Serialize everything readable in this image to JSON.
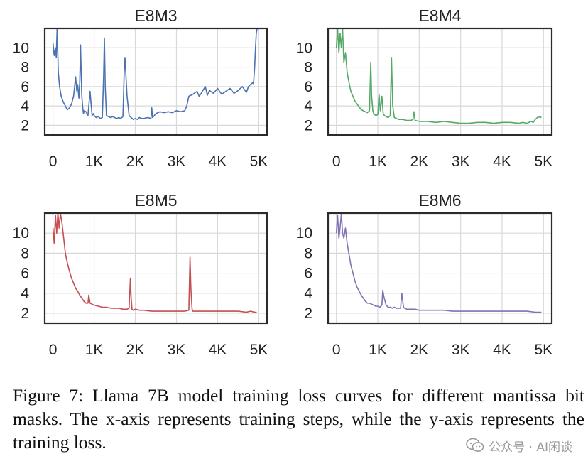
{
  "chart_data": [
    {
      "type": "line",
      "title": "E8M3",
      "color": "#4c72b0",
      "xlim": [
        -200,
        5200
      ],
      "ylim": [
        1,
        12
      ],
      "xticks": [
        0,
        1000,
        2000,
        3000,
        4000,
        5000
      ],
      "xtick_labels": [
        "0",
        "1K",
        "2K",
        "3K",
        "4K",
        "5K"
      ],
      "yticks": [
        2,
        4,
        6,
        8,
        10
      ],
      "ytick_labels": [
        "2",
        "4",
        "6",
        "8",
        "10"
      ],
      "grid": true,
      "x": [
        0,
        30,
        60,
        80,
        100,
        130,
        160,
        200,
        250,
        300,
        350,
        400,
        450,
        500,
        550,
        580,
        600,
        630,
        650,
        670,
        700,
        720,
        740,
        760,
        800,
        850,
        900,
        930,
        950,
        980,
        1000,
        1050,
        1100,
        1150,
        1200,
        1230,
        1250,
        1270,
        1300,
        1350,
        1400,
        1450,
        1500,
        1550,
        1600,
        1650,
        1700,
        1730,
        1750,
        1780,
        1800,
        1850,
        1900,
        1950,
        2000,
        2050,
        2100,
        2150,
        2200,
        2300,
        2380,
        2400,
        2420,
        2500,
        2600,
        2700,
        2800,
        2900,
        3000,
        3100,
        3200,
        3250,
        3300,
        3400,
        3500,
        3550,
        3600,
        3700,
        3750,
        3800,
        3900,
        4000,
        4100,
        4200,
        4300,
        4400,
        4500,
        4600,
        4700,
        4750,
        4800,
        4850,
        4870,
        4880,
        4900,
        4920,
        4940,
        4960
      ],
      "y": [
        10.5,
        9.2,
        10.0,
        9.0,
        12.0,
        7.5,
        6.0,
        5.0,
        4.4,
        4.0,
        3.6,
        3.8,
        4.2,
        5.0,
        7.0,
        5.5,
        6.2,
        4.8,
        6.5,
        10.3,
        5.0,
        4.0,
        3.2,
        3.5,
        3.4,
        3.0,
        5.5,
        4.0,
        3.0,
        3.2,
        3.0,
        2.8,
        2.9,
        2.7,
        2.8,
        7.0,
        11.0,
        6.0,
        3.0,
        2.9,
        2.8,
        2.9,
        2.8,
        2.7,
        2.8,
        2.7,
        2.9,
        7.5,
        9.0,
        6.5,
        5.0,
        3.0,
        2.8,
        2.6,
        2.7,
        2.6,
        2.8,
        2.7,
        2.7,
        2.8,
        2.7,
        3.8,
        2.8,
        3.2,
        3.4,
        3.3,
        3.4,
        3.3,
        3.5,
        3.4,
        3.5,
        4.0,
        5.0,
        5.2,
        5.5,
        5.0,
        5.3,
        6.0,
        5.1,
        5.6,
        5.3,
        5.8,
        5.2,
        5.5,
        5.8,
        5.3,
        5.6,
        6.0,
        5.4,
        6.0,
        6.2,
        6.4,
        6.3,
        6.8,
        8.0,
        10.0,
        11.5,
        12.0
      ]
    },
    {
      "type": "line",
      "title": "E8M4",
      "color": "#55a868",
      "xlim": [
        -200,
        5200
      ],
      "ylim": [
        1,
        12
      ],
      "xticks": [
        0,
        1000,
        2000,
        3000,
        4000,
        5000
      ],
      "xtick_labels": [
        "0",
        "1K",
        "2K",
        "3K",
        "4K",
        "5K"
      ],
      "yticks": [
        2,
        4,
        6,
        8,
        10
      ],
      "ytick_labels": [
        "2",
        "4",
        "6",
        "8",
        "10"
      ],
      "grid": true,
      "x": [
        0,
        30,
        60,
        90,
        120,
        150,
        180,
        220,
        260,
        300,
        350,
        400,
        450,
        500,
        550,
        600,
        650,
        700,
        750,
        800,
        830,
        850,
        880,
        900,
        950,
        1000,
        1030,
        1060,
        1100,
        1130,
        1160,
        1200,
        1250,
        1300,
        1330,
        1360,
        1400,
        1450,
        1500,
        1600,
        1700,
        1800,
        1850,
        1870,
        1900,
        2000,
        2200,
        2400,
        2600,
        2800,
        3000,
        3200,
        3400,
        3600,
        3800,
        4000,
        4200,
        4400,
        4500,
        4600,
        4700,
        4750,
        4800,
        4850,
        4900,
        4950
      ],
      "y": [
        10.0,
        12.0,
        9.5,
        11.5,
        10.0,
        12.0,
        8.5,
        9.5,
        7.5,
        6.5,
        5.5,
        5.0,
        4.5,
        4.2,
        3.9,
        3.6,
        3.5,
        3.4,
        3.3,
        3.5,
        8.5,
        5.0,
        3.5,
        3.2,
        3.0,
        3.1,
        5.2,
        3.5,
        5.0,
        3.2,
        3.0,
        2.9,
        2.8,
        3.0,
        9.0,
        4.0,
        2.8,
        2.7,
        2.6,
        2.6,
        2.5,
        2.5,
        2.6,
        3.4,
        2.5,
        2.4,
        2.4,
        2.3,
        2.4,
        2.3,
        2.2,
        2.2,
        2.3,
        2.3,
        2.2,
        2.3,
        2.3,
        2.2,
        2.3,
        2.2,
        2.4,
        2.3,
        2.6,
        2.8,
        2.9,
        2.8
      ]
    },
    {
      "type": "line",
      "title": "E8M5",
      "color": "#c44e52",
      "xlim": [
        -200,
        5200
      ],
      "ylim": [
        1,
        12
      ],
      "xticks": [
        0,
        1000,
        2000,
        3000,
        4000,
        5000
      ],
      "xtick_labels": [
        "0",
        "1K",
        "2K",
        "3K",
        "4K",
        "5K"
      ],
      "yticks": [
        2,
        4,
        6,
        8,
        10
      ],
      "ytick_labels": [
        "2",
        "4",
        "6",
        "8",
        "10"
      ],
      "grid": true,
      "x": [
        0,
        30,
        60,
        90,
        120,
        150,
        180,
        220,
        260,
        300,
        350,
        400,
        450,
        500,
        550,
        600,
        650,
        700,
        750,
        800,
        850,
        870,
        900,
        950,
        1000,
        1100,
        1200,
        1300,
        1400,
        1500,
        1600,
        1700,
        1800,
        1850,
        1880,
        1900,
        1920,
        1950,
        2000,
        2100,
        2200,
        2400,
        2600,
        2800,
        3000,
        3200,
        3300,
        3330,
        3350,
        3380,
        3400,
        3500,
        3700,
        3900,
        4100,
        4300,
        4500,
        4700,
        4800,
        4900,
        4950
      ],
      "y": [
        10.5,
        9.0,
        11.8,
        10.0,
        12.0,
        10.5,
        12.0,
        11.0,
        9.5,
        8.0,
        7.0,
        6.2,
        5.5,
        5.0,
        4.5,
        4.2,
        3.8,
        3.5,
        3.2,
        3.0,
        3.0,
        3.8,
        3.0,
        2.9,
        2.8,
        2.7,
        2.6,
        2.6,
        2.5,
        2.5,
        2.5,
        2.4,
        2.4,
        2.5,
        5.5,
        3.5,
        2.4,
        2.3,
        2.4,
        2.3,
        2.3,
        2.2,
        2.2,
        2.2,
        2.2,
        2.2,
        2.3,
        7.6,
        4.5,
        2.4,
        2.2,
        2.2,
        2.2,
        2.2,
        2.2,
        2.2,
        2.2,
        2.1,
        2.2,
        2.1,
        2.1
      ]
    },
    {
      "type": "line",
      "title": "E8M6",
      "color": "#8172b2",
      "xlim": [
        -200,
        5200
      ],
      "ylim": [
        1,
        12
      ],
      "xticks": [
        0,
        1000,
        2000,
        3000,
        4000,
        5000
      ],
      "xtick_labels": [
        "0",
        "1K",
        "2K",
        "3K",
        "4K",
        "5K"
      ],
      "yticks": [
        2,
        4,
        6,
        8,
        10
      ],
      "ytick_labels": [
        "2",
        "4",
        "6",
        "8",
        "10"
      ],
      "grid": true,
      "x": [
        0,
        30,
        60,
        90,
        120,
        150,
        180,
        220,
        260,
        300,
        350,
        400,
        450,
        500,
        550,
        600,
        650,
        700,
        750,
        800,
        850,
        900,
        950,
        1000,
        1050,
        1100,
        1120,
        1150,
        1200,
        1250,
        1300,
        1350,
        1400,
        1450,
        1500,
        1550,
        1580,
        1620,
        1650,
        1700,
        1800,
        1900,
        2000,
        2200,
        2400,
        2600,
        2800,
        3000,
        3200,
        3400,
        3600,
        3800,
        4000,
        4200,
        4400,
        4600,
        4800,
        4900,
        4950
      ],
      "y": [
        10.0,
        11.8,
        9.5,
        10.5,
        12.0,
        10.0,
        9.5,
        10.5,
        9.0,
        8.0,
        6.8,
        6.0,
        5.2,
        4.6,
        4.2,
        3.8,
        3.5,
        3.2,
        3.0,
        3.0,
        2.9,
        2.8,
        2.7,
        2.7,
        2.6,
        2.8,
        4.3,
        3.6,
        2.8,
        2.6,
        2.6,
        2.5,
        2.6,
        2.5,
        2.5,
        2.5,
        4.0,
        2.6,
        2.5,
        2.4,
        2.4,
        2.4,
        2.3,
        2.3,
        2.3,
        2.3,
        2.2,
        2.2,
        2.2,
        2.2,
        2.2,
        2.2,
        2.2,
        2.2,
        2.2,
        2.2,
        2.1,
        2.1,
        2.1
      ]
    }
  ],
  "caption": "Figure 7: Llama 7B model training loss curves for different mantissa bit masks.  The x-axis represents training steps, while the y-axis represents the training loss.",
  "watermark": {
    "icon": "wechat-icon",
    "text": "公众号 · AI闲谈"
  }
}
